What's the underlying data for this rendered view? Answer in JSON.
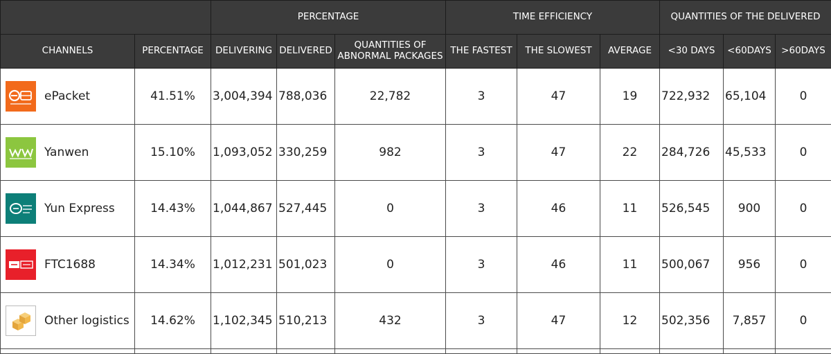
{
  "header": {
    "group_percentage": "PERCENTAGE",
    "group_time_efficiency": "TIME EFFICIENCY",
    "group_quantities_delivered": "QUANTITIES OF THE DELIVERED",
    "columns": {
      "channels": "CHANNELS",
      "percentage": "PERCENTAGE",
      "delivering": "DELIVERING",
      "delivered": "DELIVERED",
      "abnormal_line1": "QUANTITIES OF",
      "abnormal_line2": "ABNORMAL PACKAGES",
      "fastest": "THE FASTEST",
      "slowest": "THE SLOWEST",
      "average": "AVERAGE",
      "under30": "<30 DAYS",
      "under60": "<60DAYS",
      "over60": ">60DAYS"
    }
  },
  "rows": [
    {
      "name": "ePacket",
      "logo_icon": "epacket-logo-icon",
      "logo_color": "#f26a1b",
      "percentage": "41.51%",
      "delivering": "3,004,394",
      "delivered": "788,036",
      "abnormal": "22,782",
      "fastest": "3",
      "slowest": "47",
      "average": "19",
      "under30": "722,932",
      "under60": "65,104",
      "over60": "0"
    },
    {
      "name": "Yanwen",
      "logo_icon": "yanwen-logo-icon",
      "logo_color": "#8cc63f",
      "percentage": "15.10%",
      "delivering": "1,093,052",
      "delivered": "330,259",
      "abnormal": "982",
      "fastest": "3",
      "slowest": "47",
      "average": "22",
      "under30": "284,726",
      "under60": "45,533",
      "over60": "0"
    },
    {
      "name": "Yun Express",
      "logo_icon": "yun-express-logo-icon",
      "logo_color": "#0d7f78",
      "percentage": "14.43%",
      "delivering": "1,044,867",
      "delivered": "527,445",
      "abnormal": "0",
      "fastest": "3",
      "slowest": "46",
      "average": "11",
      "under30": "526,545",
      "under60": "900",
      "over60": "0"
    },
    {
      "name": "FTC1688",
      "logo_icon": "ftc1688-logo-icon",
      "logo_color": "#e8202a",
      "percentage": "14.34%",
      "delivering": "1,012,231",
      "delivered": "501,023",
      "abnormal": "0",
      "fastest": "3",
      "slowest": "46",
      "average": "11",
      "under30": "500,067",
      "under60": "956",
      "over60": "0"
    },
    {
      "name": "Other logistics",
      "logo_icon": "boxes-icon",
      "logo_color": "#f2b84b",
      "percentage": "14.62%",
      "delivering": "1,102,345",
      "delivered": "510,213",
      "abnormal": "432",
      "fastest": "3",
      "slowest": "47",
      "average": "12",
      "under30": "502,356",
      "under60": "7,857",
      "over60": "0"
    }
  ]
}
